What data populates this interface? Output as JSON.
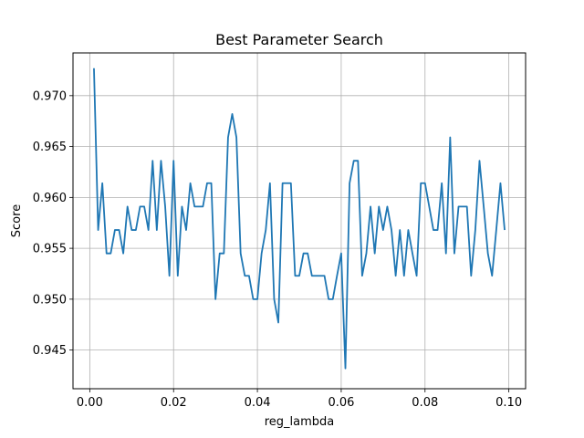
{
  "chart_data": {
    "type": "line",
    "title": "Best Parameter Search",
    "xlabel": "reg_lambda",
    "ylabel": "Score",
    "xlim": [
      -0.004,
      0.104
    ],
    "ylim": [
      0.9412,
      0.9742
    ],
    "xticks": [
      "0.00",
      "0.02",
      "0.04",
      "0.06",
      "0.08",
      "0.10"
    ],
    "xtick_values": [
      0.0,
      0.02,
      0.04,
      0.06,
      0.08,
      0.1
    ],
    "yticks": [
      "0.945",
      "0.950",
      "0.955",
      "0.960",
      "0.965",
      "0.970"
    ],
    "ytick_values": [
      0.945,
      0.95,
      0.955,
      0.96,
      0.965,
      0.97
    ],
    "grid": true,
    "line_color": "#1f77b4",
    "series": [
      {
        "x": [
          0.001,
          0.002,
          0.003,
          0.004,
          0.005,
          0.006,
          0.007,
          0.008,
          0.009,
          0.01,
          0.011,
          0.012,
          0.013,
          0.014,
          0.015,
          0.016,
          0.017,
          0.018,
          0.019,
          0.02,
          0.021,
          0.022,
          0.023,
          0.024,
          0.025,
          0.026,
          0.027,
          0.028,
          0.029,
          0.03,
          0.031,
          0.032,
          0.033,
          0.034,
          0.035,
          0.036,
          0.037,
          0.038,
          0.039,
          0.04,
          0.041,
          0.042,
          0.043,
          0.044,
          0.045,
          0.046,
          0.047,
          0.048,
          0.049,
          0.05,
          0.051,
          0.052,
          0.053,
          0.054,
          0.055,
          0.056,
          0.057,
          0.058,
          0.059,
          0.06,
          0.061,
          0.062,
          0.063,
          0.064,
          0.065,
          0.066,
          0.067,
          0.068,
          0.069,
          0.07,
          0.071,
          0.072,
          0.073,
          0.074,
          0.075,
          0.076,
          0.077,
          0.078,
          0.079,
          0.08,
          0.081,
          0.082,
          0.083,
          0.084,
          0.085,
          0.086,
          0.087,
          0.088,
          0.089,
          0.09,
          0.091,
          0.092,
          0.093,
          0.094,
          0.095,
          0.096,
          0.097,
          0.098,
          0.099
        ],
        "values": [
          0.9727,
          0.9568,
          0.9614,
          0.9545,
          0.9545,
          0.9568,
          0.9568,
          0.9545,
          0.9591,
          0.9568,
          0.9568,
          0.9591,
          0.9591,
          0.9568,
          0.9636,
          0.9568,
          0.9636,
          0.9591,
          0.9523,
          0.9636,
          0.9523,
          0.9591,
          0.9568,
          0.9614,
          0.9591,
          0.9591,
          0.9591,
          0.9614,
          0.9614,
          0.95,
          0.9545,
          0.9545,
          0.9659,
          0.9682,
          0.9659,
          0.9545,
          0.9523,
          0.9523,
          0.95,
          0.95,
          0.9545,
          0.9568,
          0.9614,
          0.95,
          0.9477,
          0.9614,
          0.9614,
          0.9614,
          0.9523,
          0.9523,
          0.9545,
          0.9545,
          0.9523,
          0.9523,
          0.9523,
          0.9523,
          0.95,
          0.95,
          0.9523,
          0.9545,
          0.9432,
          0.9614,
          0.9636,
          0.9636,
          0.9523,
          0.9545,
          0.9591,
          0.9545,
          0.9591,
          0.9568,
          0.9591,
          0.9568,
          0.9523,
          0.9568,
          0.9523,
          0.9568,
          0.9545,
          0.9523,
          0.9614,
          0.9614,
          0.9591,
          0.9568,
          0.9568,
          0.9614,
          0.9545,
          0.9659,
          0.9545,
          0.9591,
          0.9591,
          0.9591,
          0.9523,
          0.9568,
          0.9636,
          0.9591,
          0.9545,
          0.9523,
          0.9568,
          0.9614,
          0.9568
        ]
      }
    ]
  }
}
